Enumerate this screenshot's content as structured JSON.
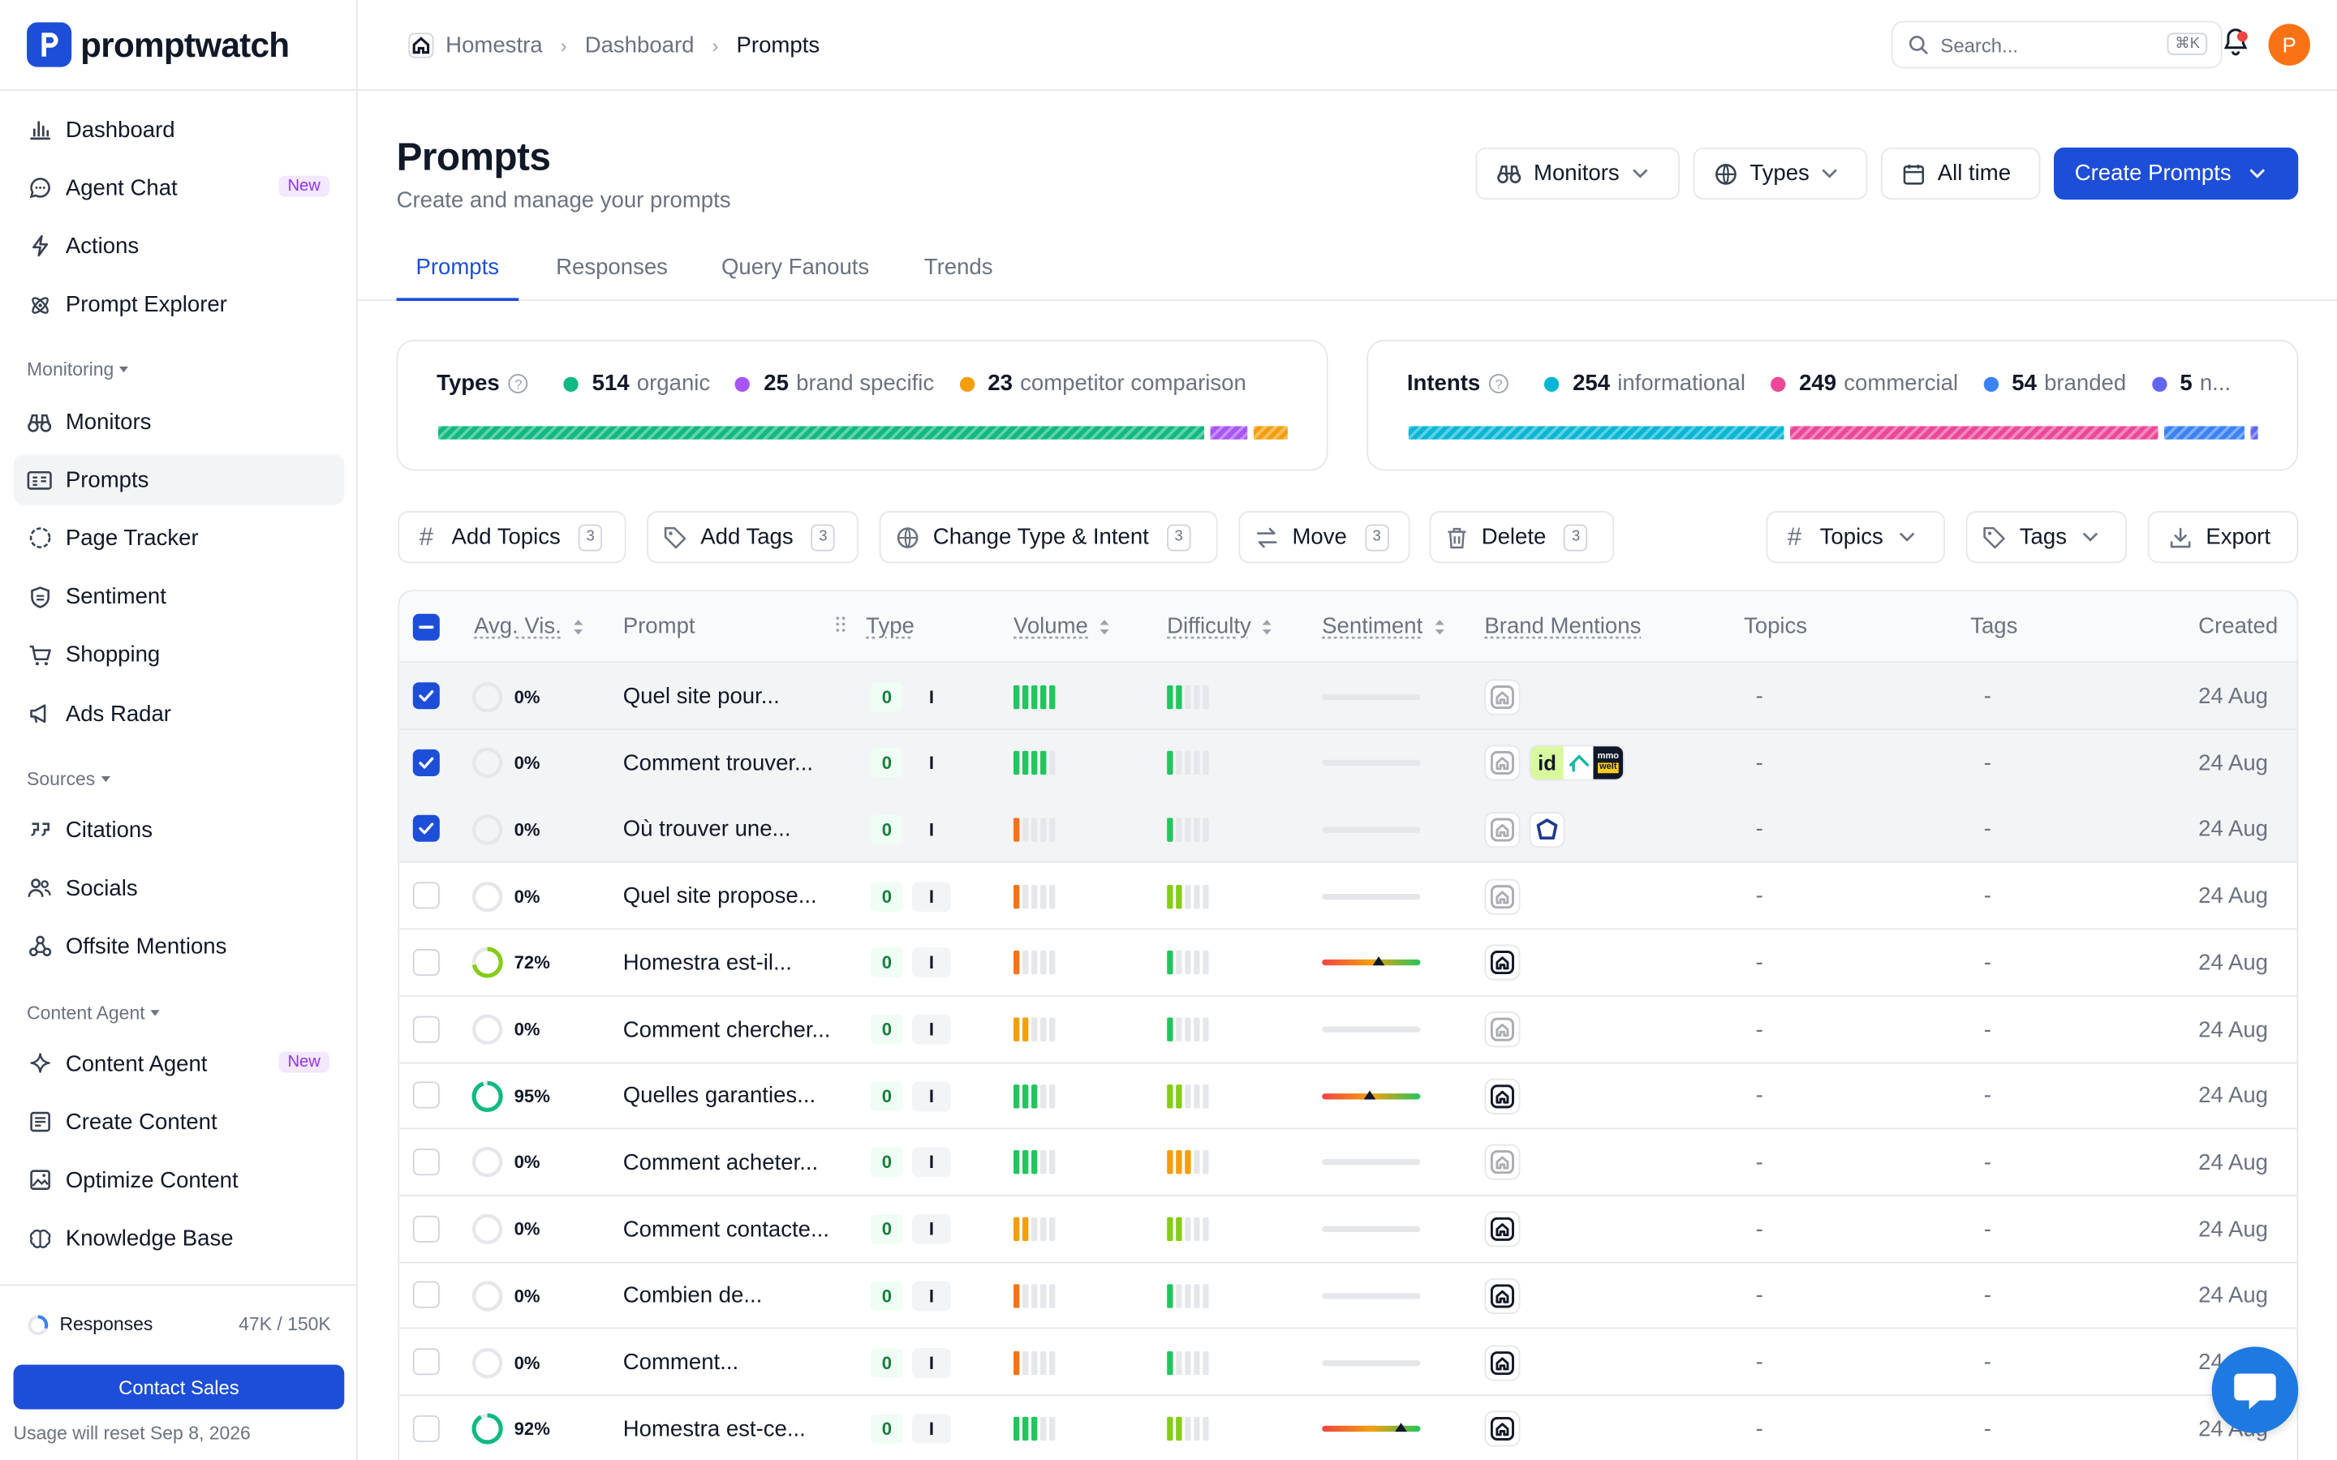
{
  "app": {
    "name": "promptwatch"
  },
  "sidebar": {
    "items_top": [
      {
        "label": "Dashboard",
        "icon": "bar-chart-icon"
      },
      {
        "label": "Agent Chat",
        "icon": "chat-bubble-icon",
        "badge": "New"
      },
      {
        "label": "Actions",
        "icon": "lightning-icon"
      },
      {
        "label": "Prompt Explorer",
        "icon": "atom-icon"
      }
    ],
    "section_monitoring": "Monitoring",
    "items_monitoring": [
      {
        "label": "Monitors",
        "icon": "binoculars-icon"
      },
      {
        "label": "Prompts",
        "icon": "prompt-list-icon",
        "active": true
      },
      {
        "label": "Page Tracker",
        "icon": "page-tracker-icon"
      },
      {
        "label": "Sentiment",
        "icon": "shield-icon"
      },
      {
        "label": "Shopping",
        "icon": "cart-icon"
      },
      {
        "label": "Ads Radar",
        "icon": "megaphone-icon"
      }
    ],
    "section_sources": "Sources",
    "items_sources": [
      {
        "label": "Citations",
        "icon": "quote-icon"
      },
      {
        "label": "Socials",
        "icon": "users-icon"
      },
      {
        "label": "Offsite Mentions",
        "icon": "network-icon"
      }
    ],
    "section_content": "Content Agent",
    "items_content": [
      {
        "label": "Content Agent",
        "icon": "sparkle-icon",
        "badge": "New"
      },
      {
        "label": "Create Content",
        "icon": "document-icon"
      },
      {
        "label": "Optimize Content",
        "icon": "image-icon"
      },
      {
        "label": "Knowledge Base",
        "icon": "brain-icon"
      }
    ],
    "usage": {
      "label": "Responses",
      "value": "47K / 150K",
      "fraction": 0.31
    },
    "contact_label": "Contact Sales",
    "reset_text": "Usage will reset Sep 8, 2026"
  },
  "topbar": {
    "breadcrumb": [
      "Homestra",
      "Dashboard",
      "Prompts"
    ],
    "search_placeholder": "Search...",
    "search_shortcut": "⌘K",
    "avatar_initial": "P"
  },
  "header": {
    "title": "Prompts",
    "subtitle": "Create and manage your prompts",
    "monitors_label": "Monitors",
    "types_label": "Types",
    "time_label": "All time",
    "create_label": "Create Prompts"
  },
  "tabs": [
    "Prompts",
    "Responses",
    "Query Fanouts",
    "Trends"
  ],
  "types_card": {
    "title": "Types",
    "entries": [
      {
        "count": "514",
        "label": "organic",
        "color": "#10b981"
      },
      {
        "count": "25",
        "label": "brand specific",
        "color": "#a855f7"
      },
      {
        "count": "23",
        "label": "competitor comparison",
        "color": "#f59e0b"
      }
    ]
  },
  "intents_card": {
    "title": "Intents",
    "entries": [
      {
        "count": "254",
        "label": "informational",
        "color": "#06b6d4"
      },
      {
        "count": "249",
        "label": "commercial",
        "color": "#ec4899"
      },
      {
        "count": "54",
        "label": "branded",
        "color": "#3b82f6"
      },
      {
        "count": "5",
        "label": "n...",
        "color": "#6366f1"
      }
    ]
  },
  "actions": {
    "add_topics": "Add Topics",
    "add_tags": "Add Tags",
    "change_type": "Change Type & Intent",
    "move": "Move",
    "delete": "Delete",
    "selected_count": "3",
    "topics_filter": "Topics",
    "tags_filter": "Tags",
    "export": "Export"
  },
  "table": {
    "columns": [
      "Avg. Vis.",
      "Prompt",
      "Type",
      "Volume",
      "Difficulty",
      "Sentiment",
      "Brand Mentions",
      "Topics",
      "Tags",
      "Created"
    ],
    "rows": [
      {
        "selected": true,
        "vis": "0%",
        "vis_value": 0,
        "prompt": "Quel site pour...",
        "type0": "0",
        "typeI": "I",
        "volume": 5,
        "volume_color": "#22c55e",
        "difficulty": 2,
        "difficulty_color": "#22c55e",
        "sentiment": null,
        "brands": [
          "homestra-faded"
        ],
        "topics": "-",
        "tags": "-",
        "created": "24 Aug"
      },
      {
        "selected": true,
        "vis": "0%",
        "vis_value": 0,
        "prompt": "Comment trouver...",
        "type0": "0",
        "typeI": "I",
        "volume": 4,
        "volume_color": "#22c55e",
        "difficulty": 1,
        "difficulty_color": "#22c55e",
        "sentiment": null,
        "brands": [
          "homestra-faded",
          "competitors"
        ],
        "topics": "-",
        "tags": "-",
        "created": "24 Aug"
      },
      {
        "selected": true,
        "vis": "0%",
        "vis_value": 0,
        "prompt": "Où trouver une...",
        "type0": "0",
        "typeI": "I",
        "volume": 1,
        "volume_color": "#f97316",
        "difficulty": 1,
        "difficulty_color": "#22c55e",
        "sentiment": null,
        "brands": [
          "homestra-faded",
          "shield-house"
        ],
        "topics": "-",
        "tags": "-",
        "created": "24 Aug"
      },
      {
        "selected": false,
        "vis": "0%",
        "vis_value": 0,
        "prompt": "Quel site propose...",
        "type0": "0",
        "typeI": "I",
        "volume": 1,
        "volume_color": "#f97316",
        "difficulty": 2,
        "difficulty_color": "#84cc16",
        "sentiment": null,
        "brands": [
          "homestra-faded"
        ],
        "topics": "-",
        "tags": "-",
        "created": "24 Aug"
      },
      {
        "selected": false,
        "vis": "72%",
        "vis_value": 72,
        "prompt": "Homestra est-il...",
        "type0": "0",
        "typeI": "I",
        "volume": 1,
        "volume_color": "#f97316",
        "difficulty": 1,
        "difficulty_color": "#22c55e",
        "sentiment": 0.58,
        "brands": [
          "homestra"
        ],
        "topics": "-",
        "tags": "-",
        "created": "24 Aug"
      },
      {
        "selected": false,
        "vis": "0%",
        "vis_value": 0,
        "prompt": "Comment chercher...",
        "type0": "0",
        "typeI": "I",
        "volume": 2,
        "volume_color": "#f59e0b",
        "difficulty": 1,
        "difficulty_color": "#22c55e",
        "sentiment": null,
        "brands": [
          "homestra-faded"
        ],
        "topics": "-",
        "tags": "-",
        "created": "24 Aug"
      },
      {
        "selected": false,
        "vis": "95%",
        "vis_value": 95,
        "prompt": "Quelles garanties...",
        "type0": "0",
        "typeI": "I",
        "volume": 3,
        "volume_color": "#22c55e",
        "difficulty": 2,
        "difficulty_color": "#84cc16",
        "sentiment": 0.48,
        "brands": [
          "homestra"
        ],
        "topics": "-",
        "tags": "-",
        "created": "24 Aug"
      },
      {
        "selected": false,
        "vis": "0%",
        "vis_value": 0,
        "prompt": "Comment acheter...",
        "type0": "0",
        "typeI": "I",
        "volume": 3,
        "volume_color": "#22c55e",
        "difficulty": 3,
        "difficulty_color": "#f59e0b",
        "sentiment": null,
        "brands": [
          "homestra-faded"
        ],
        "topics": "-",
        "tags": "-",
        "created": "24 Aug"
      },
      {
        "selected": false,
        "vis": "0%",
        "vis_value": 0,
        "prompt": "Comment contacte...",
        "type0": "0",
        "typeI": "I",
        "volume": 2,
        "volume_color": "#f59e0b",
        "difficulty": 2,
        "difficulty_color": "#84cc16",
        "sentiment": null,
        "brands": [
          "homestra"
        ],
        "topics": "-",
        "tags": "-",
        "created": "24 Aug"
      },
      {
        "selected": false,
        "vis": "0%",
        "vis_value": 0,
        "prompt": "Combien de...",
        "type0": "0",
        "typeI": "I",
        "volume": 1,
        "volume_color": "#f97316",
        "difficulty": 1,
        "difficulty_color": "#22c55e",
        "sentiment": null,
        "brands": [
          "homestra"
        ],
        "topics": "-",
        "tags": "-",
        "created": "24 Aug"
      },
      {
        "selected": false,
        "vis": "0%",
        "vis_value": 0,
        "prompt": "Comment...",
        "type0": "0",
        "typeI": "I",
        "volume": 1,
        "volume_color": "#f97316",
        "difficulty": 1,
        "difficulty_color": "#22c55e",
        "sentiment": null,
        "brands": [
          "homestra"
        ],
        "topics": "-",
        "tags": "-",
        "created": "24 Aug"
      },
      {
        "selected": false,
        "vis": "92%",
        "vis_value": 92,
        "prompt": "Homestra est-ce...",
        "type0": "0",
        "typeI": "I",
        "volume": 3,
        "volume_color": "#22c55e",
        "difficulty": 2,
        "difficulty_color": "#84cc16",
        "sentiment": 0.8,
        "brands": [
          "homestra"
        ],
        "topics": "-",
        "tags": "-",
        "created": "24 Aug"
      }
    ]
  }
}
